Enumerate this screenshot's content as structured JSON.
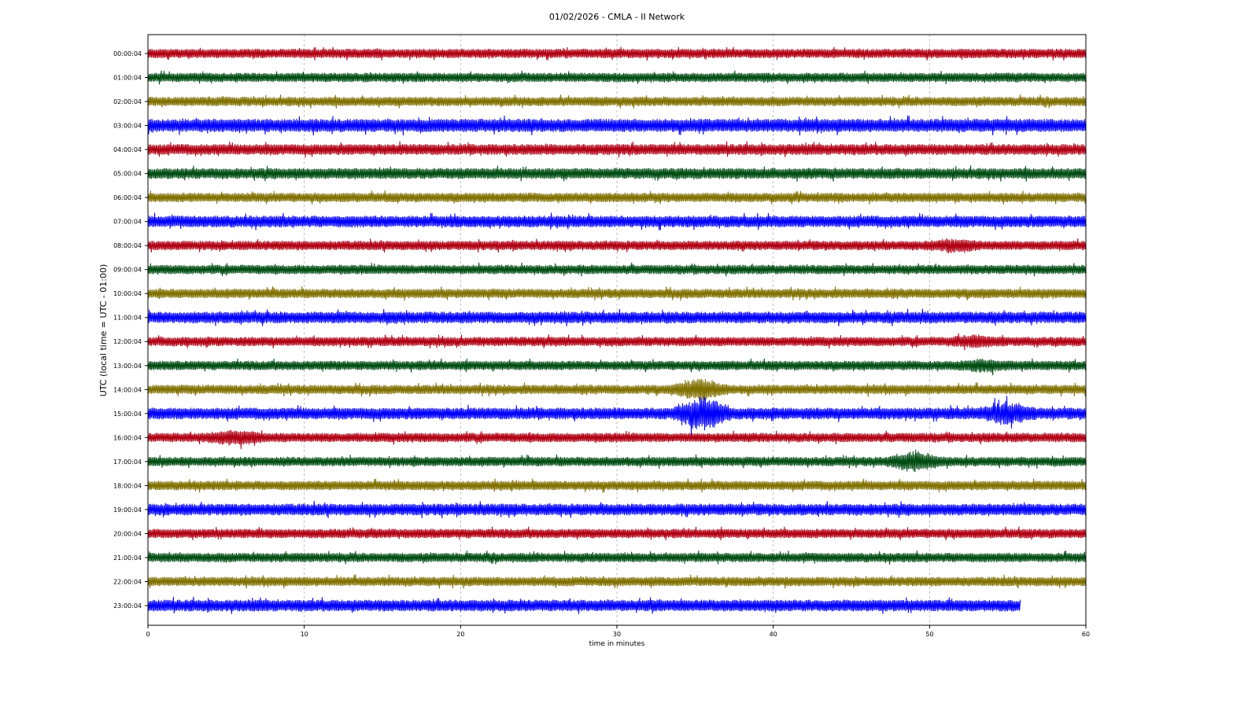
{
  "chart_data": {
    "type": "line",
    "title": "01/02/2026 - CMLA - II Network",
    "xlabel": "time in minutes",
    "ylabel": "UTC (local time = UTC - 01:00)",
    "xlim": [
      0,
      60
    ],
    "xticks": [
      "0",
      "10",
      "20",
      "30",
      "40",
      "50",
      "60"
    ],
    "grid": "vertical dashed at x ticks",
    "rows": [
      "00:00:04",
      "01:00:04",
      "02:00:04",
      "03:00:04",
      "04:00:04",
      "05:00:04",
      "06:00:04",
      "07:00:04",
      "08:00:04",
      "09:00:04",
      "10:00:04",
      "11:00:04",
      "12:00:04",
      "13:00:04",
      "14:00:04",
      "15:00:04",
      "16:00:04",
      "17:00:04",
      "18:00:04",
      "19:00:04",
      "20:00:04",
      "21:00:04",
      "22:00:04",
      "23:00:04"
    ],
    "colors": [
      "#b00013",
      "#004d13",
      "#807000",
      "#0000ff"
    ],
    "last_row_end_minute": 55.8,
    "events": [
      {
        "row": "08:00:04",
        "minute": 51.5,
        "strength": 1.6
      },
      {
        "row": "12:00:04",
        "minute": 53,
        "strength": 1.5
      },
      {
        "row": "13:00:04",
        "minute": 53.5,
        "strength": 1.5
      },
      {
        "row": "14:00:04",
        "minute": 35.3,
        "strength": 2.5
      },
      {
        "row": "15:00:04",
        "minute": 35.5,
        "strength": 2.8
      },
      {
        "row": "15:00:04",
        "minute": 55,
        "strength": 2.0
      },
      {
        "row": "16:00:04",
        "minute": 5.5,
        "strength": 1.8
      },
      {
        "row": "17:00:04",
        "minute": 49,
        "strength": 2.2
      }
    ]
  }
}
